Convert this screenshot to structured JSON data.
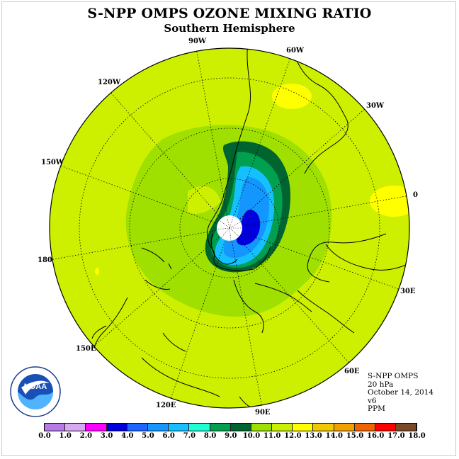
{
  "title": "S-NPP OMPS OZONE MIXING RATIO",
  "subtitle": "Southern Hemisphere",
  "longitude_labels": {
    "lon_90w": "90W",
    "lon_60w": "60W",
    "lon_30w": "30W",
    "lon_0": "0",
    "lon_120w": "120W",
    "lon_150w": "150W",
    "lon_180": "180",
    "lon_30e": "30E",
    "lon_60e": "60E",
    "lon_90e": "90E",
    "lon_120e": "120E",
    "lon_150e": "150E"
  },
  "info": {
    "instrument": "S-NPP OMPS",
    "level": "20 hPa",
    "date": "October 14, 2014",
    "version": "v6",
    "units": "PPM"
  },
  "logo_text": "NOAA",
  "colorbar": {
    "colors": [
      "#b57ae6",
      "#d8a8f2",
      "#ff00ff",
      "#0000dc",
      "#1e64ff",
      "#1496ff",
      "#14c0ff",
      "#20ffd4",
      "#00a050",
      "#006430",
      "#a0e000",
      "#c8f000",
      "#ffff00",
      "#f0c800",
      "#f0a000",
      "#f06400",
      "#ff0000",
      "#7a4a28"
    ],
    "tick_labels": [
      "0.0",
      "1.0",
      "2.0",
      "3.0",
      "4.0",
      "5.0",
      "6.0",
      "7.0",
      "8.0",
      "9.0",
      "10.0",
      "11.0",
      "12.0",
      "13.0",
      "14.0",
      "15.0",
      "16.0",
      "17.0",
      "18.0"
    ]
  },
  "field_colors": {
    "background": "#ccf000",
    "ring": "#a0e000",
    "collar": "#00a050",
    "collar_dark": "#006430",
    "blue_light": "#14c0ff",
    "blue_mid": "#1496ff",
    "blue_deep": "#0000dc",
    "yellow": "#ffff00",
    "pole": "#ffffff"
  }
}
